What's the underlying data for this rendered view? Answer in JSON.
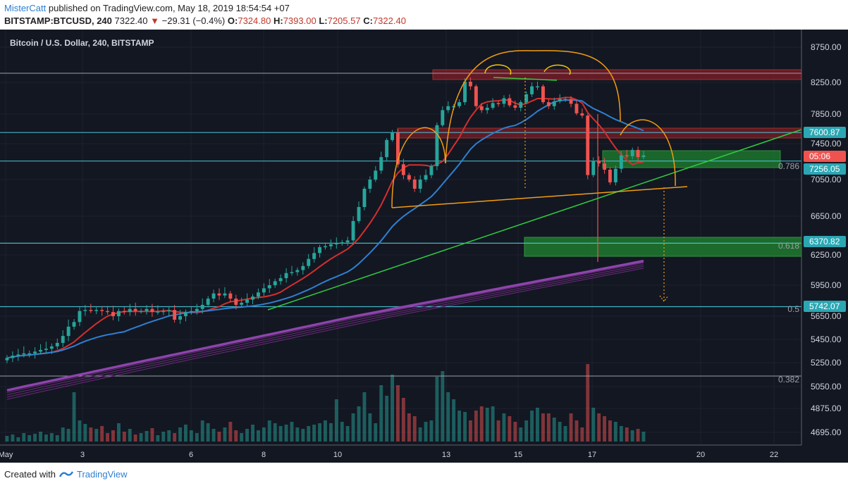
{
  "header": {
    "author": "MisterCatt",
    "published_text": "published on TradingView.com, May 18, 2019 18:54:54 +07",
    "symbol": "BITSTAMP:BTCUSD, 240",
    "last": "7322.40",
    "change": "−29.31 (−0.4%)",
    "o_label": "O:",
    "o": "7324.80",
    "h_label": "H:",
    "h": "7393.00",
    "l_label": "L:",
    "l": "7205.57",
    "c_label": "C:",
    "c": "7322.40"
  },
  "chart_title": "Bitcoin / U.S. Dollar, 240, BITSTAMP",
  "footer": {
    "created": "Created with",
    "brand": "TradingView"
  },
  "colors": {
    "bg": "#131722",
    "up": "#26a69a",
    "down": "#ef5350",
    "ma_fast": "#d32f2f",
    "ma_slow": "#2f7fd1",
    "ma_long": "#8e44ad",
    "trend": "#2ecc40",
    "neckline": "#f39c12",
    "level": "#4dd0e1"
  },
  "price_axis": {
    "ticks": [
      "8750.00",
      "8250.00",
      "7850.00",
      "7450.00",
      "7050.00",
      "6650.00",
      "6250.00",
      "5950.00",
      "5650.00",
      "5450.00",
      "5250.00",
      "5050.00",
      "4875.00",
      "4695.00"
    ],
    "highlights": [
      {
        "label": "7600.87",
        "color": "#2ba7b3"
      },
      {
        "label": "05:06",
        "color": "#ef5350"
      },
      {
        "label": "7256.05",
        "color": "#2ba7b3"
      },
      {
        "label": "6370.82",
        "color": "#2ba7b3"
      },
      {
        "label": "5742.07",
        "color": "#2ba7b3"
      }
    ]
  },
  "time_axis": [
    "May",
    "3",
    "6",
    "8",
    "10",
    "13",
    "15",
    "17",
    "20",
    "22"
  ],
  "fib_labels": [
    "0.786",
    "0.618",
    "0.5",
    "0.382"
  ],
  "chart_data": {
    "type": "candlestick",
    "title": "Bitcoin / U.S. Dollar, 240, BITSTAMP",
    "timeframe": "240",
    "x": [
      "May",
      "3",
      "6",
      "8",
      "10",
      "13",
      "15",
      "17",
      "20",
      "22"
    ],
    "last_close": 7322.4,
    "ohlc_last": {
      "open": 7324.8,
      "high": 7393.0,
      "low": 7205.57,
      "close": 7322.4
    },
    "horizontal_levels": [
      7600.87,
      7256.05,
      6370.82,
      5742.07
    ],
    "fib_levels": [
      {
        "label": "0.786",
        "price": 7256.05
      },
      {
        "label": "0.618",
        "price": 6370.82
      },
      {
        "label": "0.5",
        "price": 5742.07
      },
      {
        "label": "0.382",
        "price": 5130
      }
    ],
    "closes": [
      5290,
      5310,
      5320,
      5330,
      5330,
      5345,
      5360,
      5370,
      5390,
      5420,
      5480,
      5560,
      5600,
      5700,
      5710,
      5705,
      5710,
      5700,
      5690,
      5650,
      5700,
      5690,
      5720,
      5700,
      5700,
      5720,
      5690,
      5695,
      5700,
      5710,
      5620,
      5650,
      5690,
      5700,
      5720,
      5760,
      5820,
      5870,
      5850,
      5870,
      5820,
      5760,
      5780,
      5810,
      5840,
      5880,
      5920,
      5950,
      5990,
      6020,
      6070,
      6080,
      6100,
      6140,
      6210,
      6270,
      6330,
      6340,
      6360,
      6370,
      6380,
      6400,
      6600,
      6750,
      6950,
      7050,
      7150,
      7300,
      7500,
      7600,
      7220,
      7100,
      7050,
      6950,
      7050,
      7100,
      7200,
      7700,
      7900,
      7950,
      7950,
      8000,
      8260,
      8200,
      7950,
      7900,
      7930,
      7990,
      7980,
      8050,
      7960,
      7930,
      8000,
      8100,
      8200,
      8200,
      8000,
      7950,
      8010,
      8040,
      8040,
      7980,
      7860,
      7830,
      7100,
      7260,
      7230,
      7160,
      7020,
      7170,
      7320,
      7310,
      7380,
      7300,
      7320
    ],
    "ylim": [
      4620,
      8850
    ]
  }
}
